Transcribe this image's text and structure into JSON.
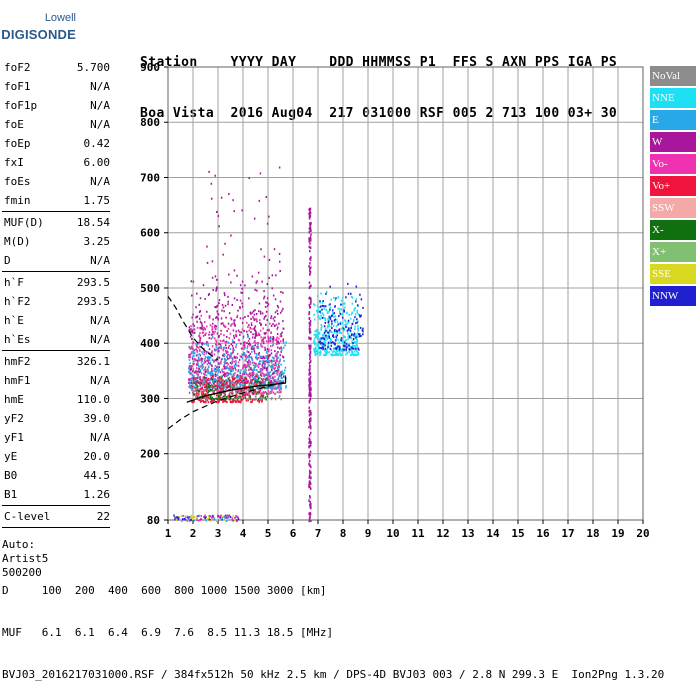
{
  "logo": {
    "top": "Lowell",
    "bottom": "DIGISONDE"
  },
  "header": {
    "line1": "Station    YYYY DAY    DDD HHMMSS P1  FFS S AXN PPS IGA PS",
    "line2": "Boa Vista  2016 Aug04  217 031000 RSF 005 2 713 100 03+ 30"
  },
  "params": {
    "g1": [
      {
        "name": "foF2",
        "value": "5.700"
      },
      {
        "name": "foF1",
        "value": "N/A"
      },
      {
        "name": "foF1p",
        "value": "N/A"
      },
      {
        "name": "foE",
        "value": "N/A"
      },
      {
        "name": "foEp",
        "value": "0.42"
      },
      {
        "name": "fxI",
        "value": "6.00"
      },
      {
        "name": "foEs",
        "value": "N/A"
      },
      {
        "name": "fmin",
        "value": "1.75"
      }
    ],
    "g2": [
      {
        "name": "MUF(D)",
        "value": "18.54"
      },
      {
        "name": "M(D)",
        "value": "3.25"
      },
      {
        "name": "D",
        "value": "N/A"
      }
    ],
    "g3": [
      {
        "name": "h`F",
        "value": "293.5"
      },
      {
        "name": "h`F2",
        "value": "293.5"
      },
      {
        "name": "h`E",
        "value": "N/A"
      },
      {
        "name": "h`Es",
        "value": "N/A"
      }
    ],
    "g4": [
      {
        "name": "hmF2",
        "value": "326.1"
      },
      {
        "name": "hmF1",
        "value": "N/A"
      },
      {
        "name": "hmE",
        "value": "110.0"
      },
      {
        "name": "yF2",
        "value": "39.0"
      },
      {
        "name": "yF1",
        "value": "N/A"
      },
      {
        "name": "yE",
        "value": "20.0"
      },
      {
        "name": "B0",
        "value": "44.5"
      },
      {
        "name": "B1",
        "value": "1.26"
      }
    ],
    "g5": [
      {
        "name": "C-level",
        "value": "22"
      }
    ],
    "auto": [
      "Auto:",
      "Artist5",
      "500200"
    ]
  },
  "legend": [
    {
      "label": "NoVal",
      "color": "#8c8c8c"
    },
    {
      "label": "NNE",
      "color": "#1ee0f5"
    },
    {
      "label": "E",
      "color": "#28a8e8"
    },
    {
      "label": "W",
      "color": "#a8169c"
    },
    {
      "label": "Vo-",
      "color": "#f032b0"
    },
    {
      "label": "Vo+",
      "color": "#f0143c"
    },
    {
      "label": "SSW",
      "color": "#f4a8a8"
    },
    {
      "label": "X-",
      "color": "#107010"
    },
    {
      "label": "X+",
      "color": "#80c070"
    },
    {
      "label": "SSE",
      "color": "#d8d820"
    },
    {
      "label": "NNW",
      "color": "#2020d0"
    }
  ],
  "footer": {
    "line1": "D     100  200  400  600  800 1000 1500 3000 [km]",
    "line2": "MUF   6.1  6.1  6.4  6.9  7.6  8.5 11.3 18.5 [MHz]",
    "line3": "BVJ03_2016217031000.RSF / 384fx512h 50 kHz 2.5 km / DPS-4D BVJ03 003 / 2.8 N 299.3 E  Ion2Png 1.3.20"
  },
  "chart_data": {
    "type": "scatter",
    "title": "",
    "xlabel": "",
    "ylabel": "",
    "xlim": [
      1,
      20
    ],
    "ylim": [
      80,
      900
    ],
    "xticks": [
      1,
      2,
      3,
      4,
      5,
      6,
      7,
      8,
      9,
      10,
      11,
      12,
      13,
      14,
      15,
      16,
      17,
      18,
      19,
      20
    ],
    "yticks": [
      80,
      200,
      300,
      400,
      500,
      600,
      700,
      800,
      900
    ],
    "grid": true,
    "legend_position": "right",
    "clusters": [
      {
        "name": "W",
        "color": "#a8169c",
        "fmin": 1.8,
        "fmax": 5.6,
        "hmin": 330,
        "hmax": 540,
        "count": 700
      },
      {
        "name": "Vo-",
        "color": "#f032b0",
        "fmin": 1.8,
        "fmax": 5.5,
        "hmin": 310,
        "hmax": 460,
        "count": 500
      },
      {
        "name": "E",
        "color": "#28a8e8",
        "fmin": 1.8,
        "fmax": 5.7,
        "hmin": 320,
        "hmax": 420,
        "count": 450
      },
      {
        "name": "NNE",
        "color": "#1ee0f5",
        "fmin": 6.8,
        "fmax": 8.6,
        "hmin": 380,
        "hmax": 500,
        "count": 400
      },
      {
        "name": "NNW",
        "color": "#2020d0",
        "fmin": 7.0,
        "fmax": 8.8,
        "hmin": 390,
        "hmax": 520,
        "count": 160
      },
      {
        "name": "Vo+",
        "color": "#f0143c",
        "fmin": 1.9,
        "fmax": 4.8,
        "hmin": 295,
        "hmax": 350,
        "count": 300
      },
      {
        "name": "X-",
        "color": "#107010",
        "fmin": 2.0,
        "fmax": 5.0,
        "hmin": 300,
        "hmax": 345,
        "count": 120
      },
      {
        "name": "NoVal",
        "color": "#8c8c8c",
        "fmin": 1.9,
        "fmax": 5.5,
        "hmin": 300,
        "hmax": 380,
        "count": 120
      }
    ],
    "spread_column": {
      "freq": 6.65,
      "hmin": 80,
      "hmax": 650,
      "color": "#a8169c"
    },
    "low_band": {
      "fmin": 1.2,
      "fmax": 3.8,
      "hmin": 80,
      "hmax": 90
    },
    "profile_curve": [
      [
        1.75,
        293
      ],
      [
        2.5,
        305
      ],
      [
        3.5,
        315
      ],
      [
        4.5,
        322
      ],
      [
        5.3,
        326
      ],
      [
        5.7,
        328
      ],
      [
        5.7,
        340
      ]
    ],
    "extrapolation_lower": [
      [
        1.0,
        245
      ],
      [
        1.5,
        262
      ],
      [
        2.0,
        276
      ],
      [
        3.0,
        296
      ],
      [
        4.0,
        310
      ],
      [
        5.0,
        322
      ],
      [
        5.7,
        330
      ]
    ],
    "extrapolation_upper": [
      [
        1.0,
        485
      ],
      [
        1.3,
        465
      ],
      [
        1.6,
        440
      ],
      [
        2.0,
        410
      ],
      [
        2.5,
        385
      ],
      [
        3.0,
        370
      ]
    ]
  }
}
